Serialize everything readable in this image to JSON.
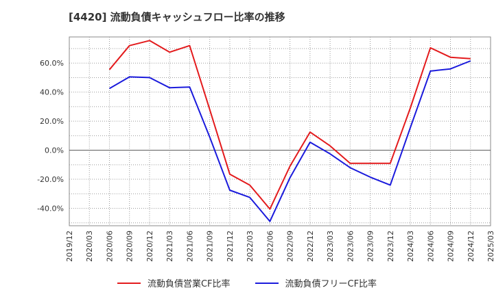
{
  "chart_data": {
    "type": "line",
    "title": "[4420]  流動負債キャッシュフロー比率の推移",
    "x": [
      "2019/12",
      "2020/03",
      "2020/06",
      "2020/09",
      "2020/12",
      "2021/03",
      "2021/06",
      "2021/09",
      "2021/12",
      "2022/03",
      "2022/06",
      "2022/09",
      "2022/12",
      "2023/03",
      "2023/06",
      "2023/09",
      "2023/12",
      "2024/03",
      "2024/06",
      "2024/09",
      "2024/12",
      "2025/03"
    ],
    "ylim": [
      -52,
      78
    ],
    "yticks": [
      -40,
      -20,
      0,
      20,
      40,
      60
    ],
    "ytick_labels": [
      "-40.0%",
      "-20.0%",
      "0.0%",
      "20.0%",
      "40.0%",
      "60.0%"
    ],
    "grid": true,
    "legend_position": "bottom",
    "series": [
      {
        "name": "流動負債営業CF比率",
        "color": "#e31a1c",
        "values": [
          null,
          null,
          55.5,
          72.0,
          75.5,
          67.5,
          72.0,
          28.0,
          -16.5,
          -24.0,
          -40.5,
          -11.0,
          12.5,
          3.0,
          -9.0,
          -9.0,
          -9.0,
          29.0,
          70.5,
          64.0,
          63.0,
          null
        ]
      },
      {
        "name": "流動負債フリーCF比率",
        "color": "#1a1adc",
        "values": [
          null,
          null,
          42.5,
          50.5,
          50.0,
          43.0,
          43.5,
          9.0,
          -27.5,
          -32.5,
          -49.0,
          -19.0,
          5.5,
          -2.5,
          -12.0,
          -18.5,
          -24.0,
          15.5,
          54.5,
          56.0,
          61.5,
          null
        ]
      }
    ]
  }
}
